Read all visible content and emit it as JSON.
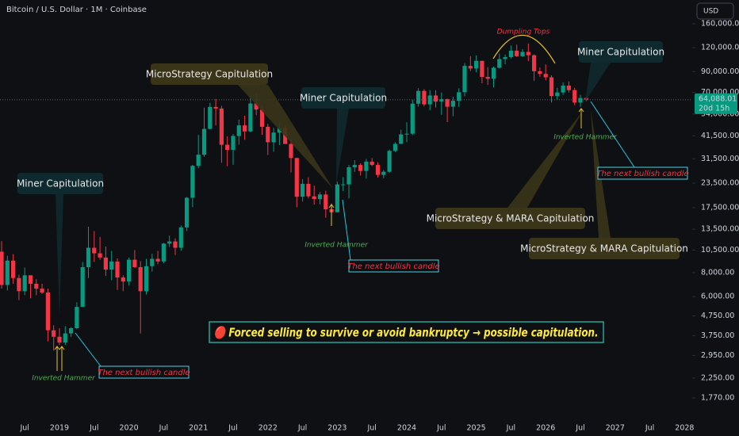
{
  "chart_data": {
    "type": "candlestick",
    "title": "Bitcoin / U.S. Dollar · 1M · Coinbase",
    "currency": "USD",
    "categories": [
      null,
      null,
      null,
      null,
      "Jul",
      null,
      null,
      null,
      null,
      null,
      "2019",
      null,
      null,
      null,
      null,
      null,
      "Jul",
      null,
      null,
      null,
      null,
      null,
      "2020",
      null,
      null,
      null,
      null,
      null,
      "Jul",
      null,
      null,
      null,
      null,
      null,
      "2021",
      null,
      null,
      null,
      null,
      null,
      "Jul",
      null,
      null,
      null,
      null,
      null,
      "2022",
      null,
      null,
      null,
      null,
      null,
      "Jul",
      null,
      null,
      null,
      null,
      null,
      "2023",
      null,
      null,
      null,
      null,
      null,
      "Jul",
      null,
      null,
      null,
      null,
      null,
      "2024",
      null,
      null,
      null,
      null,
      null,
      "Jul",
      null,
      null,
      null,
      null,
      null,
      "2025",
      null,
      null,
      null,
      null,
      null,
      "Jul",
      null,
      null,
      null,
      null,
      null,
      "2026",
      null,
      null,
      null,
      null,
      null,
      "Jul",
      null,
      null,
      null,
      null,
      null,
      "2027",
      null,
      null,
      null,
      null,
      null,
      "Jul",
      null,
      null,
      null,
      null,
      null,
      "2028"
    ],
    "open": [
      10300,
      6900,
      9250,
      7500,
      6400,
      7750,
      7000,
      6600,
      6300,
      4000,
      3700,
      3450,
      3850,
      4100,
      5300,
      8550,
      10800,
      10100,
      9600,
      8300,
      9150,
      7550,
      7200,
      9350,
      8550,
      6400,
      8650,
      9450,
      9150,
      11350,
      11650,
      10800,
      13800,
      19700,
      28950,
      33100,
      45150,
      58800,
      57700,
      37300,
      35050,
      41450,
      47100,
      43800,
      61300,
      57000,
      46300,
      38450,
      43200,
      45500,
      37650,
      31800,
      19950,
      23300,
      20050,
      19400,
      20500,
      17150,
      16550,
      23150,
      23150,
      28450,
      29250,
      27200,
      30450,
      29250,
      25950,
      26950,
      34650,
      37700,
      42250,
      42600,
      61150,
      71300,
      60650,
      67500,
      62700,
      64600,
      58950,
      63300,
      70200,
      96400,
      93400,
      102400,
      84350,
      82550,
      94200,
      104600,
      107150,
      115750,
      108250,
      114050,
      109600,
      90400,
      87500,
      84000,
      67000,
      70000,
      76000,
      72000,
      62000,
      65500,
      null,
      null,
      null,
      null,
      null,
      null,
      null,
      null,
      null,
      null,
      null,
      null,
      null,
      null,
      null,
      null,
      null
    ],
    "high": [
      11700,
      9800,
      10000,
      7800,
      8500,
      7750,
      7400,
      7000,
      6600,
      4250,
      4100,
      4200,
      4150,
      5600,
      9100,
      13900,
      13200,
      12300,
      10950,
      10400,
      9500,
      7750,
      9600,
      10500,
      9200,
      9450,
      10050,
      10400,
      11450,
      12500,
      12100,
      14100,
      19900,
      29300,
      41950,
      58350,
      61800,
      64850,
      59600,
      41300,
      42400,
      50500,
      52900,
      67000,
      69000,
      59100,
      47950,
      45800,
      48200,
      47450,
      40000,
      31950,
      24650,
      25200,
      22800,
      21100,
      21450,
      18400,
      23950,
      25250,
      29200,
      31000,
      29850,
      31450,
      31800,
      30200,
      27500,
      35200,
      38450,
      44700,
      48950,
      64000,
      73750,
      72800,
      71950,
      71950,
      70000,
      65000,
      66500,
      73600,
      99800,
      108350,
      109350,
      102750,
      95000,
      95750,
      111900,
      110550,
      123200,
      124450,
      117900,
      126200,
      110600,
      94600,
      98000,
      86000,
      74000,
      79000,
      80000,
      74000,
      68000,
      66500,
      null,
      null,
      null,
      null,
      null,
      null,
      null,
      null,
      null,
      null,
      null,
      null,
      null,
      null,
      null,
      null,
      null
    ],
    "low": [
      6600,
      6450,
      7000,
      5750,
      6100,
      5880,
      6100,
      6200,
      3500,
      3130,
      3350,
      3350,
      3700,
      4050,
      5300,
      7500,
      9100,
      9350,
      7700,
      7300,
      6500,
      6400,
      6850,
      8450,
      3850,
      6150,
      8100,
      8850,
      8950,
      10900,
      9900,
      10400,
      13200,
      17600,
      28100,
      32300,
      44950,
      47050,
      30000,
      28800,
      29300,
      37350,
      39600,
      43300,
      53250,
      42000,
      32950,
      34300,
      37150,
      37700,
      26700,
      17600,
      18800,
      19550,
      18150,
      18200,
      15500,
      16250,
      16500,
      21350,
      19550,
      26950,
      25800,
      24800,
      28850,
      25150,
      24900,
      26550,
      34150,
      37650,
      38550,
      41900,
      59000,
      59200,
      56550,
      58400,
      53500,
      49000,
      52550,
      58850,
      66800,
      90500,
      89250,
      78250,
      76600,
      74400,
      93350,
      98200,
      105250,
      107350,
      107250,
      102000,
      80600,
      84500,
      81000,
      62000,
      64000,
      68000,
      70000,
      60000,
      59000,
      63000,
      null,
      null,
      null,
      null,
      null,
      null,
      null,
      null,
      null,
      null,
      null,
      null,
      null,
      null,
      null,
      null,
      null
    ],
    "close": [
      6900,
      9250,
      7500,
      6400,
      7750,
      7000,
      6600,
      6300,
      4000,
      3700,
      3450,
      3850,
      4100,
      5300,
      8550,
      10800,
      10100,
      9600,
      8300,
      9150,
      7550,
      7200,
      9350,
      8550,
      6400,
      8650,
      9450,
      9150,
      11350,
      11650,
      10800,
      13800,
      19700,
      28950,
      33100,
      45150,
      58800,
      57700,
      37300,
      35050,
      41450,
      47100,
      43800,
      61300,
      57000,
      46300,
      38450,
      43200,
      45500,
      37650,
      31800,
      19950,
      23300,
      20050,
      19400,
      20500,
      17150,
      16550,
      23150,
      23150,
      28450,
      29250,
      27200,
      30450,
      29250,
      25950,
      26950,
      34650,
      37700,
      42250,
      42600,
      61150,
      71300,
      60650,
      67500,
      62700,
      64600,
      58950,
      63300,
      70200,
      96400,
      93400,
      102400,
      84350,
      82550,
      94200,
      104600,
      107150,
      115750,
      108250,
      114050,
      109600,
      90400,
      87500,
      84000,
      67000,
      70000,
      76000,
      72000,
      62000,
      65500,
      64088.01,
      null,
      null,
      null,
      null,
      null,
      null,
      null,
      null,
      null,
      null,
      null,
      null,
      null,
      null,
      null,
      null,
      null
    ],
    "up_color": "#089981",
    "down_color": "#f23645",
    "log_scale": true,
    "ylim": [
      1422,
      213000
    ],
    "yticks": [
      {
        "value": 1770,
        "label": "1,770.00"
      },
      {
        "value": 2250,
        "label": "2,250.00"
      },
      {
        "value": 2950,
        "label": "2,950.00"
      },
      {
        "value": 3750,
        "label": "3,750.00"
      },
      {
        "value": 4750,
        "label": "4,750.00"
      },
      {
        "value": 6000,
        "label": "6,000.00"
      },
      {
        "value": 8000,
        "label": "8,000.00"
      },
      {
        "value": 10500,
        "label": "10,500.00"
      },
      {
        "value": 13500,
        "label": "13,500.00"
      },
      {
        "value": 17500,
        "label": "17,500.00"
      },
      {
        "value": 23500,
        "label": "23,500.00"
      },
      {
        "value": 31500,
        "label": "31,500.00"
      },
      {
        "value": 41500,
        "label": "41,500.00"
      },
      {
        "value": 54000,
        "label": "54,000.00"
      },
      {
        "value": 70000,
        "label": "70,000.00"
      },
      {
        "value": 90000,
        "label": "90,000.00"
      },
      {
        "value": 120000,
        "label": "120,000.00"
      },
      {
        "value": 160000,
        "label": "160,000.00"
      }
    ],
    "price_tag": {
      "value": 64088.01,
      "label": "64,088.01",
      "countdown": "20d 15h"
    },
    "annotations": [
      "Miner Capitulation",
      "MicroStrategy Capitulation",
      "Miner Capitulation",
      "Miner Capitulation",
      "MicroStrategy & MARA Capitulation",
      "MicroStrategy & MARA Capitulation",
      "Inverted Hammer",
      "Inverted Hammer",
      "Inverted Hammer",
      "The next bullish candle",
      "The next bullish candle",
      "The next bullish candle",
      "Dumpling Tops",
      "🔴 Forced selling to survive or avoid bankruptcy → possible capitulation."
    ]
  }
}
